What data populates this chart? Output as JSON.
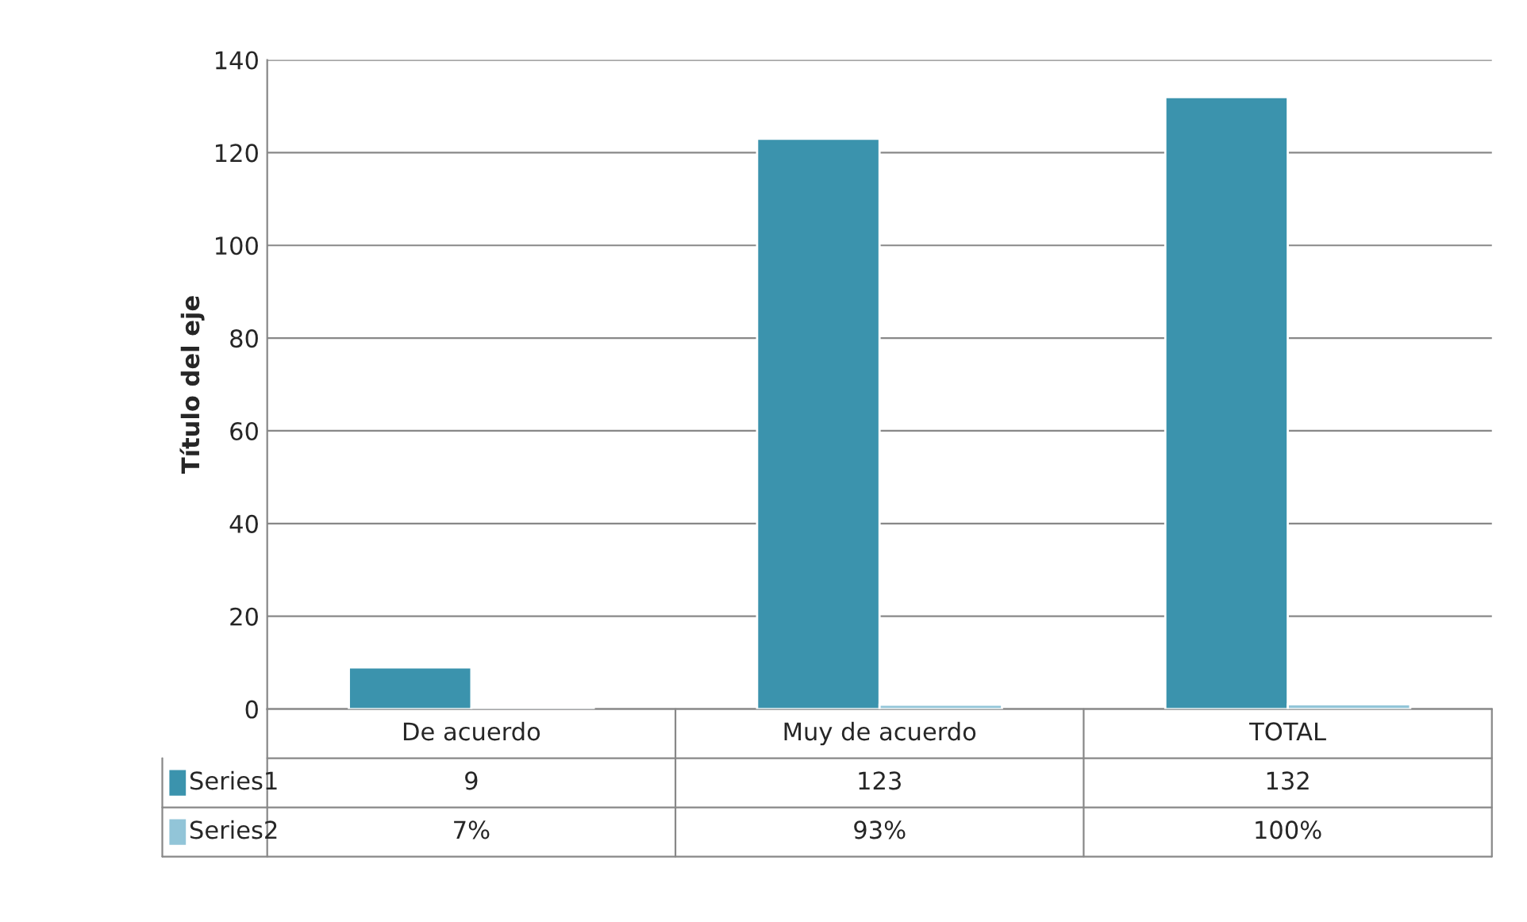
{
  "chart_data": {
    "type": "bar",
    "ylabel": "Título del eje",
    "categories": [
      "De acuerdo",
      "Muy de acuerdo",
      "TOTAL"
    ],
    "series": [
      {
        "name": "Series1",
        "color": "#3b93ad",
        "values": [
          9,
          123,
          132
        ],
        "value_labels": [
          "9",
          "123",
          "132"
        ]
      },
      {
        "name": "Series2",
        "color": "#92c5d8",
        "values": [
          0.07,
          0.93,
          1
        ],
        "value_labels": [
          "7%",
          "93%",
          "100%"
        ]
      }
    ],
    "ylim": [
      0,
      140
    ],
    "yticks": [
      0,
      20,
      40,
      60,
      80,
      100,
      120,
      140
    ],
    "grid": "y",
    "legend": "bottom"
  }
}
